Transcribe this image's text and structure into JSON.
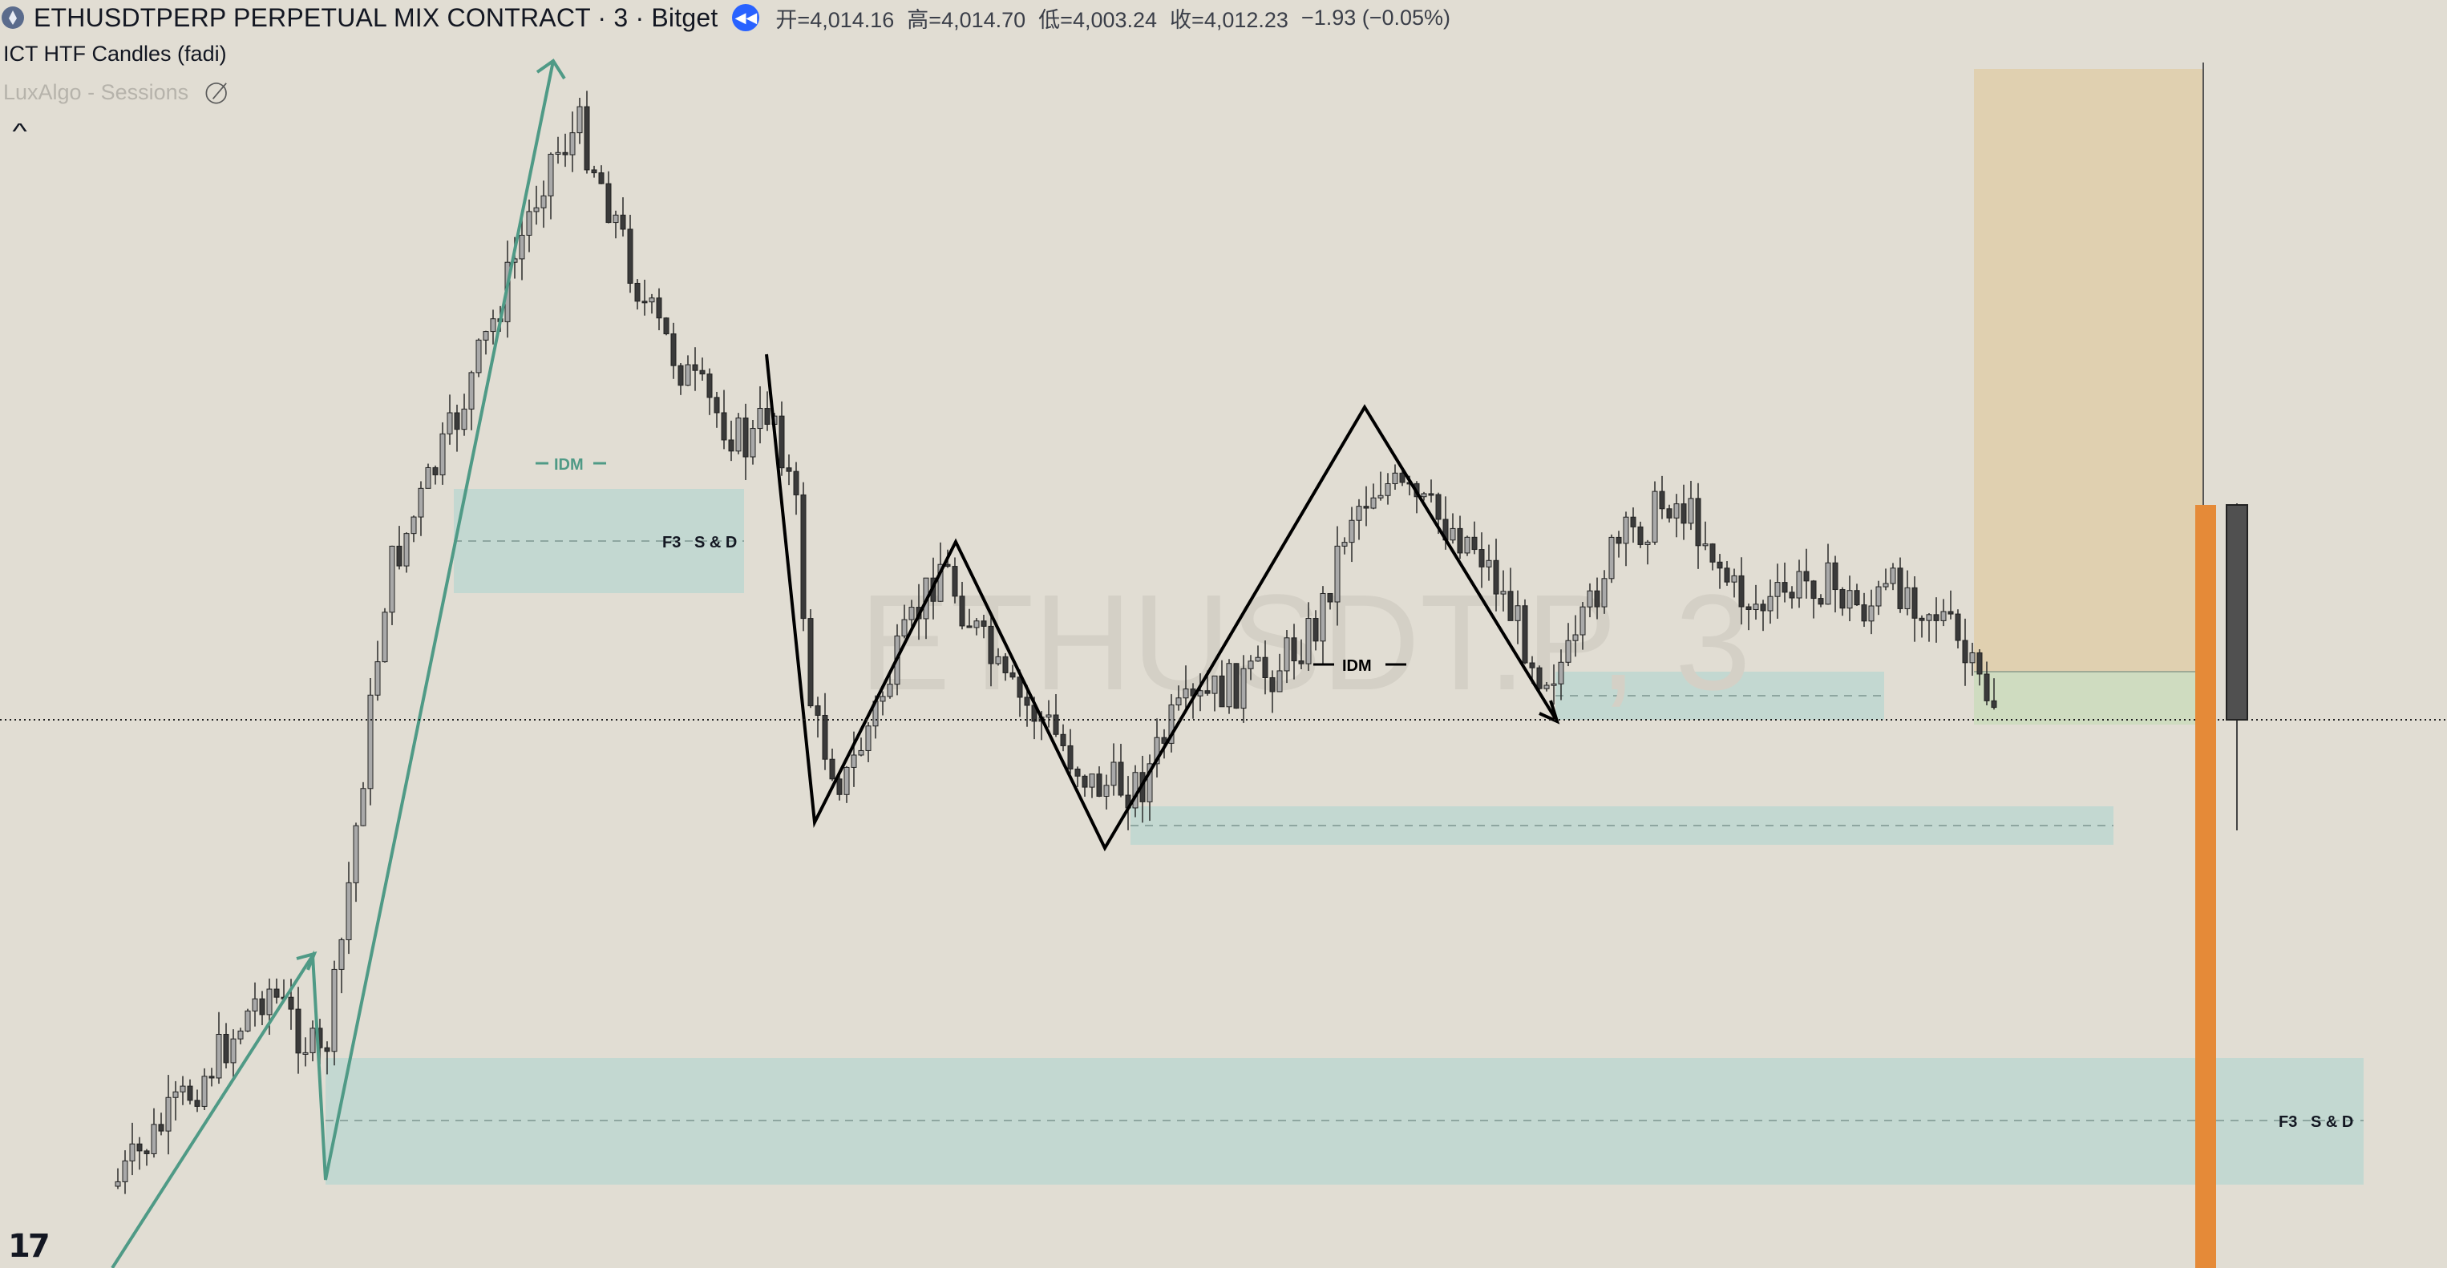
{
  "header": {
    "symbol_title": "ETHUSDTPERP PERPETUAL MIX CONTRACT · 3 · Bitget",
    "replay_icon": "rewind-icon",
    "ohlc": {
      "open": "开=4,014.16",
      "high": "高=4,014.70",
      "low": "低=4,003.24",
      "close": "收=4,012.23",
      "change": "−1.93 (−0.05%)"
    }
  },
  "indicators": [
    {
      "name": "ICT HTF Candles (fadi)",
      "visible": true
    },
    {
      "name": "LuxAlgo - Sessions",
      "visible": false,
      "icon": "eye-off-icon"
    }
  ],
  "collapse_icon": "chevron-up-icon",
  "watermark": "ETHUSDT.P, 3",
  "annotations": {
    "idm_label": "IDM",
    "zone_label": "F3   S & D"
  },
  "tv_logo": "17",
  "colors": {
    "background": "#e1ddd3",
    "zone_fill": "#c3d8d1",
    "candle_bull": "#a9a9a9",
    "candle_bear": "#3a3a3a",
    "htf_orange": "#e58a38",
    "target_box": "#e0d0b0",
    "green_box": "#cfdcc0",
    "swing_green": "#4f9a86",
    "swing_black": "#000000"
  }
}
